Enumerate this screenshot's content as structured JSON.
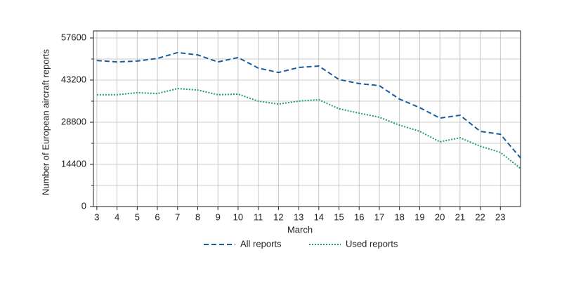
{
  "chart_data": {
    "type": "line",
    "x_label": "March",
    "y_label": "Number of European aircraft reports",
    "x": [
      3,
      4,
      5,
      6,
      7,
      8,
      9,
      10,
      11,
      12,
      13,
      14,
      15,
      16,
      17,
      18,
      19,
      20,
      21,
      22,
      23,
      24
    ],
    "series": [
      {
        "name": "All reports",
        "color": "#1a5c9c",
        "dash": "dashed",
        "values": [
          49900,
          49400,
          49700,
          50600,
          52600,
          51800,
          49400,
          50900,
          47300,
          45800,
          47500,
          48000,
          43400,
          42000,
          41300,
          36700,
          33800,
          30200,
          31200,
          25700,
          24700,
          16600
        ]
      },
      {
        "name": "Used reports",
        "color": "#1f9e6a",
        "dash": "dotted",
        "values": [
          38200,
          38200,
          38900,
          38600,
          40300,
          39800,
          38200,
          38400,
          36000,
          35000,
          36000,
          36500,
          33400,
          31900,
          30500,
          27800,
          25700,
          22100,
          23500,
          20600,
          18500,
          13000
        ]
      }
    ],
    "xlim": [
      2.83,
      24
    ],
    "xticks": [
      3,
      4,
      5,
      6,
      7,
      8,
      9,
      10,
      11,
      12,
      13,
      14,
      15,
      16,
      17,
      18,
      19,
      20,
      21,
      22,
      23
    ],
    "ylim": [
      0,
      60000
    ],
    "yticks": [
      0,
      14400,
      28800,
      43200,
      57600
    ],
    "y_minor_ticks": [
      7200,
      21600,
      36000,
      50400
    ],
    "grid": true,
    "legend": "bottom"
  }
}
